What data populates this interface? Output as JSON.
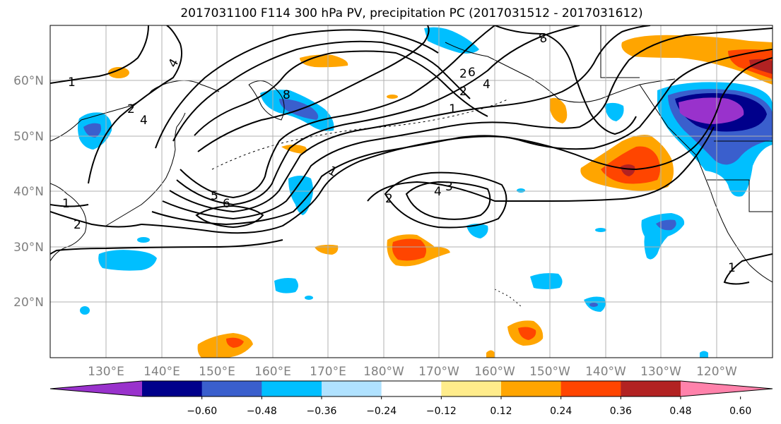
{
  "title": "2017031100 F114 300 hPa PV, precipitation PC (2017031512 - 2017031612)",
  "x_axis_labels": [
    "130°E",
    "140°E",
    "150°E",
    "160°E",
    "170°E",
    "180°W",
    "170°W",
    "160°W",
    "150°W",
    "140°W",
    "130°W",
    "120°W"
  ],
  "y_axis_labels": [
    "60°N",
    "50°N",
    "40°N",
    "30°N",
    "20°N"
  ],
  "colorbar": {
    "tick_labels": [
      "−0.60",
      "−0.48",
      "−0.36",
      "−0.24",
      "−0.12",
      "0.12",
      "0.24",
      "0.36",
      "0.48",
      "0.60"
    ],
    "colors": [
      "#9932cc",
      "#00008b",
      "#3a5fcd",
      "#00bfff",
      "#b0e2ff",
      "#ffffff",
      "#ffec8b",
      "#ffa500",
      "#ff4500",
      "#b22222",
      "#ff82ab"
    ]
  },
  "contour_labels": [
    "1",
    "2",
    "4",
    "8",
    "6",
    "4",
    "2",
    "1",
    "1",
    "2",
    "4",
    "3",
    "5",
    "6",
    "2",
    "1",
    "8",
    "4",
    "2",
    "1",
    "1",
    "2",
    "1"
  ],
  "map_style": {
    "contour_color": "#000000",
    "grid_color": "#b0b0b0",
    "label_color": "#808080"
  }
}
